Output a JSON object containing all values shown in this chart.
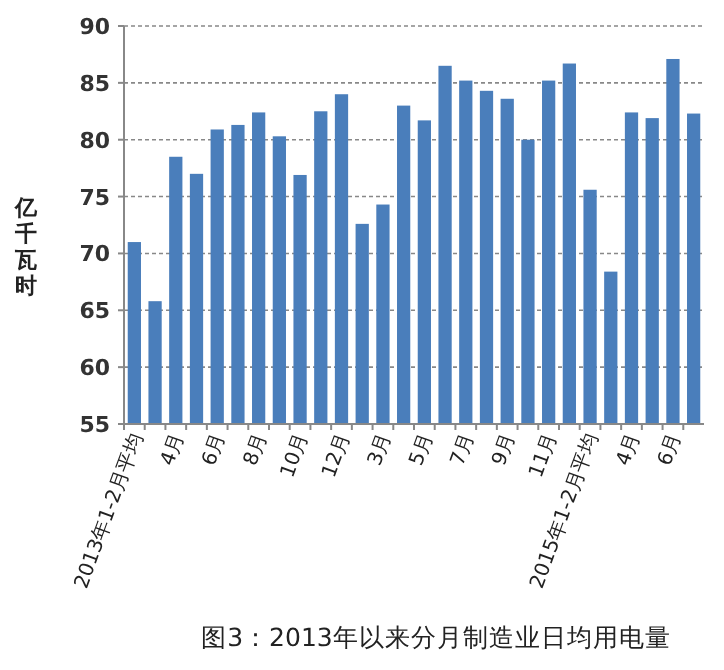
{
  "chart_data": {
    "type": "bar",
    "title": "图3：2013年以来分月制造业日均用电量",
    "ylabel": "亿千瓦时",
    "categories": [
      "2013年1-2月平均",
      null,
      "4月",
      null,
      "6月",
      null,
      "8月",
      null,
      "10月",
      null,
      "12月",
      null,
      "3月",
      null,
      "5月",
      null,
      "7月",
      null,
      "9月",
      null,
      "11月",
      null,
      "2015年1-2月平均",
      null,
      "4月",
      null,
      "6月",
      null
    ],
    "values": [
      71.0,
      65.8,
      78.5,
      77.0,
      80.9,
      81.3,
      82.4,
      80.3,
      76.9,
      82.5,
      84.0,
      72.6,
      74.3,
      83.0,
      81.7,
      86.5,
      85.2,
      84.3,
      83.6,
      80.0,
      85.2,
      86.7,
      75.6,
      68.4,
      82.4,
      81.9,
      87.1,
      82.3
    ],
    "color": "#4a7ebb",
    "ylim": [
      55,
      90
    ],
    "yticks": [
      55,
      60,
      65,
      70,
      75,
      80,
      85,
      90
    ],
    "grid": "y"
  }
}
